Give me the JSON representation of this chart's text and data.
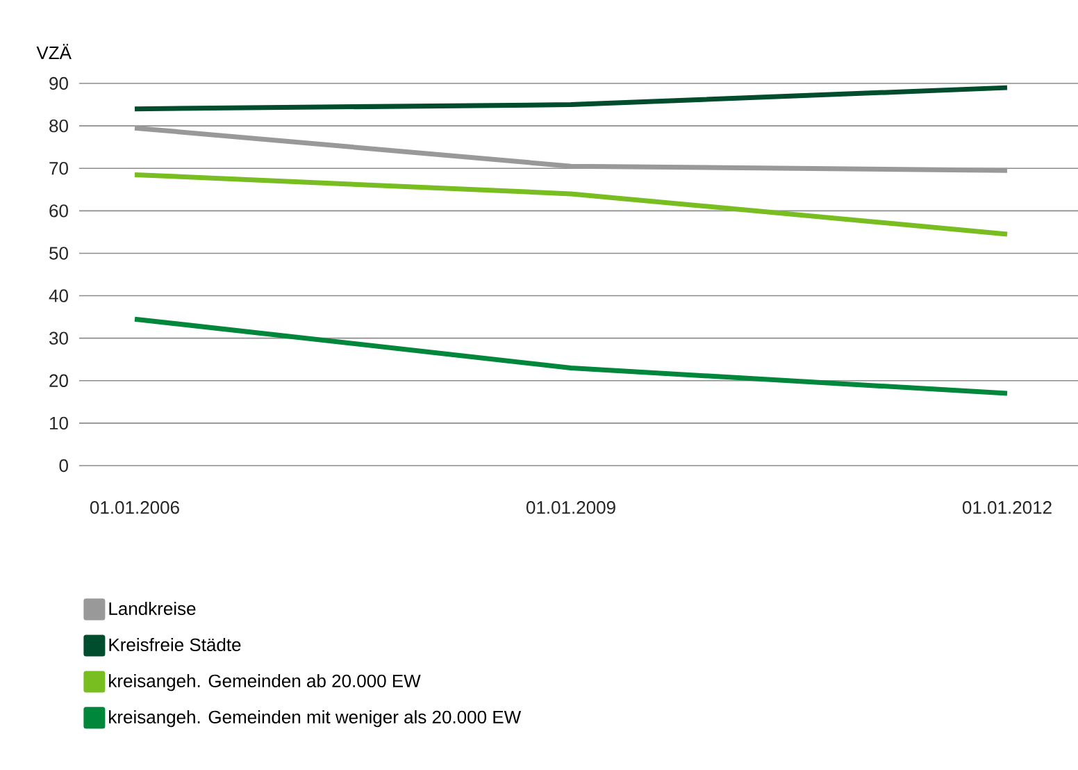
{
  "chart_data": {
    "type": "line",
    "ylabel": "VZÄ",
    "categories": [
      "01.01.2006",
      "01.01.2009",
      "01.01.2012"
    ],
    "series": [
      {
        "name": "Landkreise",
        "color": "#999999",
        "values": [
          79.5,
          70.5,
          69.5
        ]
      },
      {
        "name": "Kreisfreie Städte",
        "color": "#004d2e",
        "values": [
          84,
          85,
          89
        ]
      },
      {
        "name": "kreisangeh. Gemeinden ab 20.000 EW",
        "color": "#78be20",
        "values": [
          68.5,
          64,
          54.5
        ]
      },
      {
        "name": "kreisangeh. Gemeinden mit weniger als 20.000 EW",
        "color": "#00873c",
        "values": [
          34.5,
          23,
          17
        ]
      }
    ],
    "ylim": [
      0,
      90
    ],
    "yticks": [
      0,
      10,
      20,
      30,
      40,
      50,
      60,
      70,
      80,
      90
    ],
    "grid": "y",
    "legend": "bottom",
    "line_style": "solid"
  }
}
